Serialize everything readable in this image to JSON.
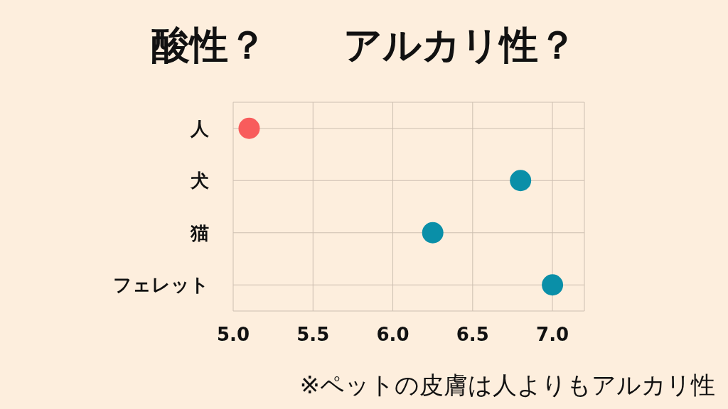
{
  "chart_data": {
    "type": "scatter",
    "orientation": "horizontal",
    "title": "酸性？　　アルカリ性？",
    "categories": [
      "人",
      "犬",
      "猫",
      "フェレット"
    ],
    "values": [
      5.1,
      6.8,
      6.25,
      7.0
    ],
    "colors": [
      "#f85c5c",
      "#0a8fa8",
      "#0a8fa8",
      "#0a8fa8"
    ],
    "xlim": [
      5.0,
      7.2
    ],
    "xticks": [
      {
        "value": 5,
        "label": "5.0"
      },
      {
        "value": 5.5,
        "label": "5.5"
      },
      {
        "value": 6,
        "label": "6.0"
      },
      {
        "value": 6.5,
        "label": "6.5"
      },
      {
        "value": 7,
        "label": "7.0"
      }
    ],
    "grid": true,
    "marker": "circle",
    "annotations": [
      "※ペットの皮膚は人よりもアルカリ性"
    ]
  }
}
